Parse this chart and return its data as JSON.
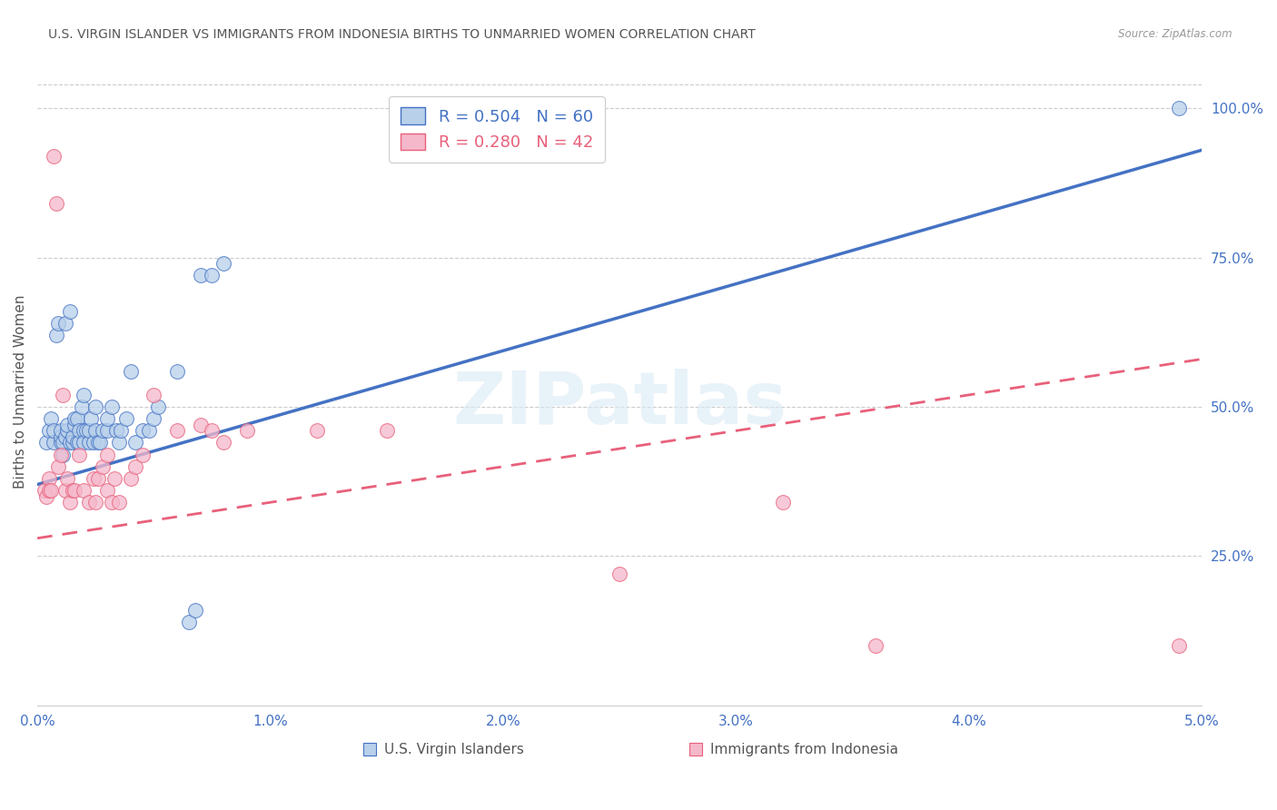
{
  "title": "U.S. VIRGIN ISLANDER VS IMMIGRANTS FROM INDONESIA BIRTHS TO UNMARRIED WOMEN CORRELATION CHART",
  "source": "Source: ZipAtlas.com",
  "ylabel": "Births to Unmarried Women",
  "x_min": 0.0,
  "x_max": 0.05,
  "y_min": 0.0,
  "y_max": 1.05,
  "x_ticks": [
    0.0,
    0.01,
    0.02,
    0.03,
    0.04,
    0.05
  ],
  "x_tick_labels": [
    "0.0%",
    "1.0%",
    "2.0%",
    "3.0%",
    "4.0%",
    "5.0%"
  ],
  "y_ticks_right": [
    0.25,
    0.5,
    0.75,
    1.0
  ],
  "y_tick_labels_right": [
    "25.0%",
    "50.0%",
    "75.0%",
    "100.0%"
  ],
  "legend_r1": "R = 0.504",
  "legend_n1": "N = 60",
  "legend_r2": "R = 0.280",
  "legend_n2": "N = 42",
  "color_blue": "#b8d0ea",
  "color_pink": "#f5b8cb",
  "line_color_blue": "#4472c4",
  "line_color_pink": "#e8607a",
  "legend_text_blue": "U.S. Virgin Islanders",
  "legend_text_pink": "Immigrants from Indonesia",
  "watermark": "ZIPatlas",
  "blue_scatter_x": [
    0.0004,
    0.0005,
    0.0006,
    0.0007,
    0.0007,
    0.0008,
    0.0009,
    0.001,
    0.001,
    0.001,
    0.0011,
    0.0011,
    0.0012,
    0.0012,
    0.0013,
    0.0013,
    0.0014,
    0.0014,
    0.0015,
    0.0015,
    0.0016,
    0.0016,
    0.0017,
    0.0017,
    0.0018,
    0.0018,
    0.0019,
    0.002,
    0.002,
    0.002,
    0.0021,
    0.0022,
    0.0022,
    0.0023,
    0.0024,
    0.0025,
    0.0025,
    0.0026,
    0.0027,
    0.0028,
    0.003,
    0.003,
    0.0032,
    0.0034,
    0.0035,
    0.0036,
    0.0038,
    0.004,
    0.0042,
    0.0045,
    0.0048,
    0.005,
    0.0052,
    0.006,
    0.0065,
    0.0068,
    0.007,
    0.0075,
    0.008,
    0.049
  ],
  "blue_scatter_y": [
    0.44,
    0.46,
    0.48,
    0.44,
    0.46,
    0.62,
    0.64,
    0.44,
    0.45,
    0.46,
    0.42,
    0.44,
    0.45,
    0.64,
    0.46,
    0.47,
    0.44,
    0.66,
    0.44,
    0.45,
    0.47,
    0.48,
    0.44,
    0.48,
    0.44,
    0.46,
    0.5,
    0.52,
    0.46,
    0.44,
    0.46,
    0.44,
    0.46,
    0.48,
    0.44,
    0.46,
    0.5,
    0.44,
    0.44,
    0.46,
    0.46,
    0.48,
    0.5,
    0.46,
    0.44,
    0.46,
    0.48,
    0.56,
    0.44,
    0.46,
    0.46,
    0.48,
    0.5,
    0.56,
    0.14,
    0.16,
    0.72,
    0.72,
    0.74,
    1.0
  ],
  "pink_scatter_x": [
    0.0003,
    0.0004,
    0.0005,
    0.0005,
    0.0006,
    0.0007,
    0.0008,
    0.0009,
    0.001,
    0.0011,
    0.0012,
    0.0013,
    0.0014,
    0.0015,
    0.0016,
    0.0018,
    0.002,
    0.0022,
    0.0024,
    0.0025,
    0.0026,
    0.0028,
    0.003,
    0.003,
    0.0032,
    0.0033,
    0.0035,
    0.004,
    0.0042,
    0.0045,
    0.005,
    0.006,
    0.007,
    0.0075,
    0.008,
    0.009,
    0.012,
    0.015,
    0.025,
    0.032,
    0.036,
    0.049
  ],
  "pink_scatter_y": [
    0.36,
    0.35,
    0.38,
    0.36,
    0.36,
    0.92,
    0.84,
    0.4,
    0.42,
    0.52,
    0.36,
    0.38,
    0.34,
    0.36,
    0.36,
    0.42,
    0.36,
    0.34,
    0.38,
    0.34,
    0.38,
    0.4,
    0.42,
    0.36,
    0.34,
    0.38,
    0.34,
    0.38,
    0.4,
    0.42,
    0.52,
    0.46,
    0.47,
    0.46,
    0.44,
    0.46,
    0.46,
    0.46,
    0.22,
    0.34,
    0.1,
    0.1
  ],
  "blue_line_x": [
    0.0,
    0.05
  ],
  "blue_line_y": [
    0.37,
    0.93
  ],
  "pink_line_x": [
    0.0,
    0.05
  ],
  "pink_line_y": [
    0.28,
    0.58
  ],
  "grid_color": "#cccccc",
  "background_color": "#ffffff",
  "title_color": "#555555",
  "axis_color": "#4472c4",
  "right_tick_color": "#4472c4"
}
